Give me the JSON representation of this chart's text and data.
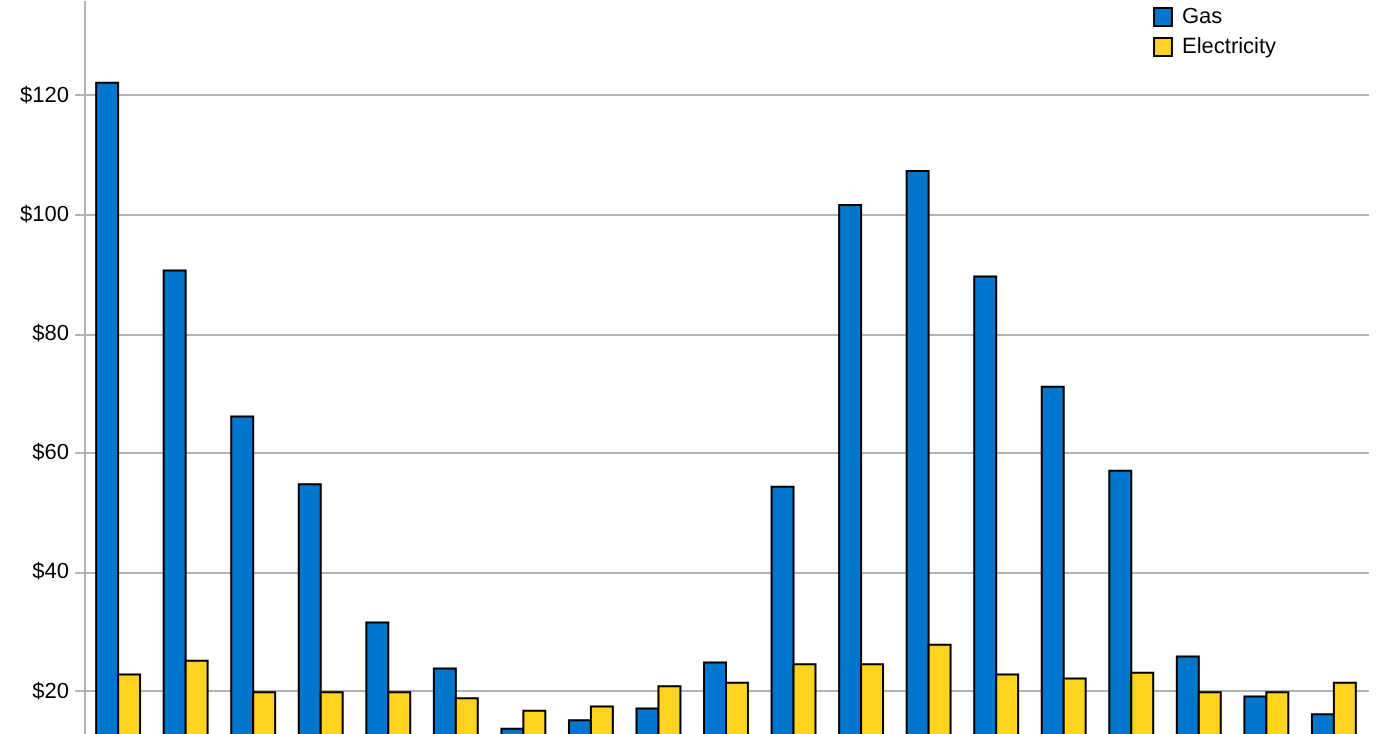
{
  "chart_data": {
    "type": "bar",
    "categories": [
      null,
      null,
      null,
      null,
      null,
      null,
      null,
      null,
      null,
      null,
      null,
      null,
      null,
      null,
      null,
      null,
      null,
      null,
      null
    ],
    "series": [
      {
        "name": "Gas",
        "color": "#0077cc",
        "values": [
          122.0,
          90.5,
          66.0,
          54.6,
          31.4,
          23.7,
          13.6,
          15.0,
          17.0,
          24.7,
          54.2,
          101.5,
          107.2,
          89.5,
          71.0,
          56.9,
          25.7,
          19.0,
          16.0
        ]
      },
      {
        "name": "Electricity",
        "color": "#ffd320",
        "values": [
          22.7,
          25.0,
          19.7,
          19.7,
          19.7,
          18.7,
          16.6,
          17.3,
          20.7,
          21.3,
          24.4,
          24.4,
          27.7,
          22.7,
          22.0,
          23.0,
          19.7,
          19.7,
          21.3
        ]
      }
    ],
    "ylim": [
      12.7,
      135.9
    ],
    "yticks": [
      {
        "value": 20,
        "label": "$20"
      },
      {
        "value": 40,
        "label": "$40"
      },
      {
        "value": 60,
        "label": "$60"
      },
      {
        "value": 80,
        "label": "$80"
      },
      {
        "value": 100,
        "label": "$100"
      },
      {
        "value": 120,
        "label": "$120"
      }
    ],
    "grid": "y",
    "legend": "top right",
    "tick_labels": "y"
  }
}
